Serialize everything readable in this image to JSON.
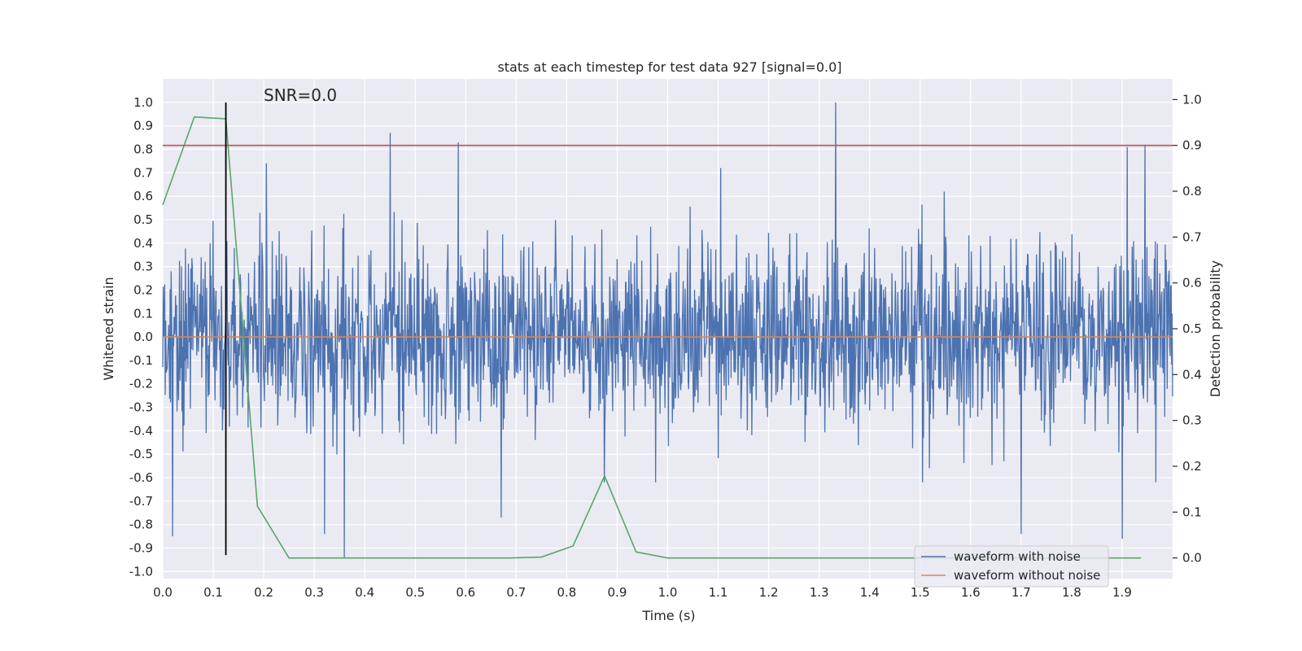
{
  "chart_data": {
    "type": "line",
    "title": "stats at each timestep for test data 927 [signal=0.0]",
    "xlabel": "Time (s)",
    "ylabel": "Whitened strain",
    "ylabel_right": "Detection probability",
    "annotation": "SNR=0.0",
    "xlim": [
      0.0,
      2.0
    ],
    "ylim": [
      -1.03,
      1.1
    ],
    "ylim_right": [
      -0.045,
      1.045
    ],
    "x_ticks": [
      "0.0",
      "0.1",
      "0.2",
      "0.3",
      "0.4",
      "0.5",
      "0.6",
      "0.7",
      "0.8",
      "0.9",
      "1.0",
      "1.1",
      "1.2",
      "1.3",
      "1.4",
      "1.5",
      "1.6",
      "1.7",
      "1.8",
      "1.9"
    ],
    "y_ticks": [
      "1.0",
      "0.9",
      "0.8",
      "0.7",
      "0.6",
      "0.5",
      "0.4",
      "0.3",
      "0.2",
      "0.1",
      "0.0",
      "-0.1",
      "-0.2",
      "-0.3",
      "-0.4",
      "-0.5",
      "-0.6",
      "-0.7",
      "-0.8",
      "-0.9",
      "-1.0"
    ],
    "y_ticks_right": [
      "1.0",
      "0.9",
      "0.8",
      "0.7",
      "0.6",
      "0.5",
      "0.4",
      "0.3",
      "0.2",
      "0.1",
      "0.0"
    ],
    "grid": true,
    "legend_position": "bottom-right",
    "series": [
      {
        "name": "waveform with noise",
        "color": "#4c72b0",
        "axis": "left",
        "description_style": "dense noise",
        "n_points": 2048,
        "x_range": [
          0.0,
          2.0
        ],
        "typical_range": [
          -0.45,
          0.45
        ],
        "peaks": [
          {
            "x": 1.333,
            "y": 1.0
          },
          {
            "x": 0.45,
            "y": 0.87
          },
          {
            "x": 0.585,
            "y": 0.83
          },
          {
            "x": 1.945,
            "y": 0.82
          },
          {
            "x": 1.91,
            "y": 0.81
          },
          {
            "x": 0.205,
            "y": 0.74
          },
          {
            "x": 1.105,
            "y": 0.72
          },
          {
            "x": 0.36,
            "y": -0.94
          },
          {
            "x": 1.9,
            "y": -0.86
          },
          {
            "x": 0.02,
            "y": -0.85
          },
          {
            "x": 1.7,
            "y": -0.84
          },
          {
            "x": 0.32,
            "y": -0.84
          },
          {
            "x": 0.67,
            "y": -0.77
          }
        ]
      },
      {
        "name": "waveform without noise",
        "color": "#dd8452",
        "axis": "left",
        "x": [
          0.0,
          2.0
        ],
        "y": [
          0.0,
          0.0
        ]
      },
      {
        "name": "",
        "color": "#55a868",
        "axis": "right",
        "x": [
          0.0,
          0.0625,
          0.125,
          0.1875,
          0.25,
          0.3125,
          0.375,
          0.4375,
          0.5,
          0.5625,
          0.625,
          0.6875,
          0.75,
          0.8125,
          0.875,
          0.9375,
          1.0,
          1.0625,
          1.125,
          1.1875,
          1.25,
          1.3125,
          1.375,
          1.4375,
          1.5,
          1.5625,
          1.625,
          1.6875,
          1.75,
          1.8125,
          1.875,
          1.9375
        ],
        "y": [
          0.77,
          0.962,
          0.958,
          0.113,
          0.0,
          0.0,
          0.0,
          0.0,
          0.0,
          0.0,
          0.0,
          0.0,
          0.002,
          0.026,
          0.179,
          0.013,
          0.0,
          0.0,
          0.0,
          0.0,
          0.0,
          0.0,
          0.0,
          0.0,
          0.0,
          0.0,
          0.0,
          0.0,
          0.0,
          0.0,
          0.0,
          0.0
        ]
      },
      {
        "name": "",
        "color": "#c44e52",
        "axis": "right",
        "x": [
          0.0,
          2.0
        ],
        "y": [
          0.9,
          0.9
        ]
      },
      {
        "name": "",
        "color": "#000000",
        "axis": "left",
        "x": [
          0.125,
          0.125
        ],
        "y": [
          -0.93,
          1.0
        ]
      }
    ]
  }
}
